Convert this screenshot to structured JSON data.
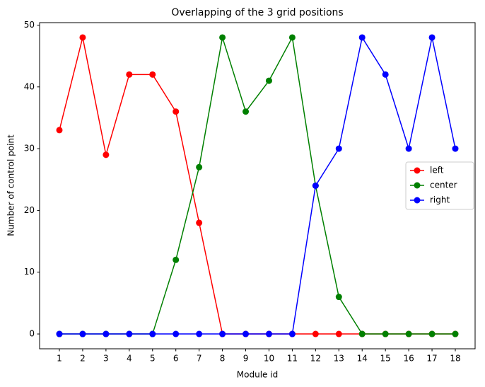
{
  "chart_data": {
    "type": "line",
    "title": "Overlapping of the 3 grid positions",
    "x_label": "Module id",
    "y_label": "Number of control point",
    "x": [
      1,
      2,
      3,
      4,
      5,
      6,
      7,
      8,
      9,
      10,
      11,
      12,
      13,
      14,
      15,
      16,
      17,
      18
    ],
    "series": [
      {
        "name": "left",
        "color": "#ff0000",
        "values": [
          33,
          48,
          29,
          42,
          42,
          36,
          18,
          0,
          0,
          0,
          0,
          0,
          0,
          0,
          0,
          0,
          0,
          0
        ]
      },
      {
        "name": "center",
        "color": "#008000",
        "values": [
          0,
          0,
          0,
          0,
          0,
          12,
          27,
          48,
          36,
          41,
          48,
          24,
          6,
          0,
          0,
          0,
          0,
          0
        ]
      },
      {
        "name": "right",
        "color": "#0000ff",
        "values": [
          0,
          0,
          0,
          0,
          0,
          0,
          0,
          0,
          0,
          0,
          0,
          24,
          30,
          48,
          42,
          30,
          48,
          30
        ]
      }
    ],
    "xlim": [
      0.15,
      18.85
    ],
    "xticks": [
      1,
      2,
      3,
      4,
      5,
      6,
      7,
      8,
      9,
      10,
      11,
      12,
      13,
      14,
      15,
      16,
      17,
      18
    ],
    "ylim": [
      -2.4,
      50.4
    ],
    "yticks": [
      0,
      10,
      20,
      30,
      40,
      50
    ],
    "grid": false,
    "legend": "center right"
  }
}
